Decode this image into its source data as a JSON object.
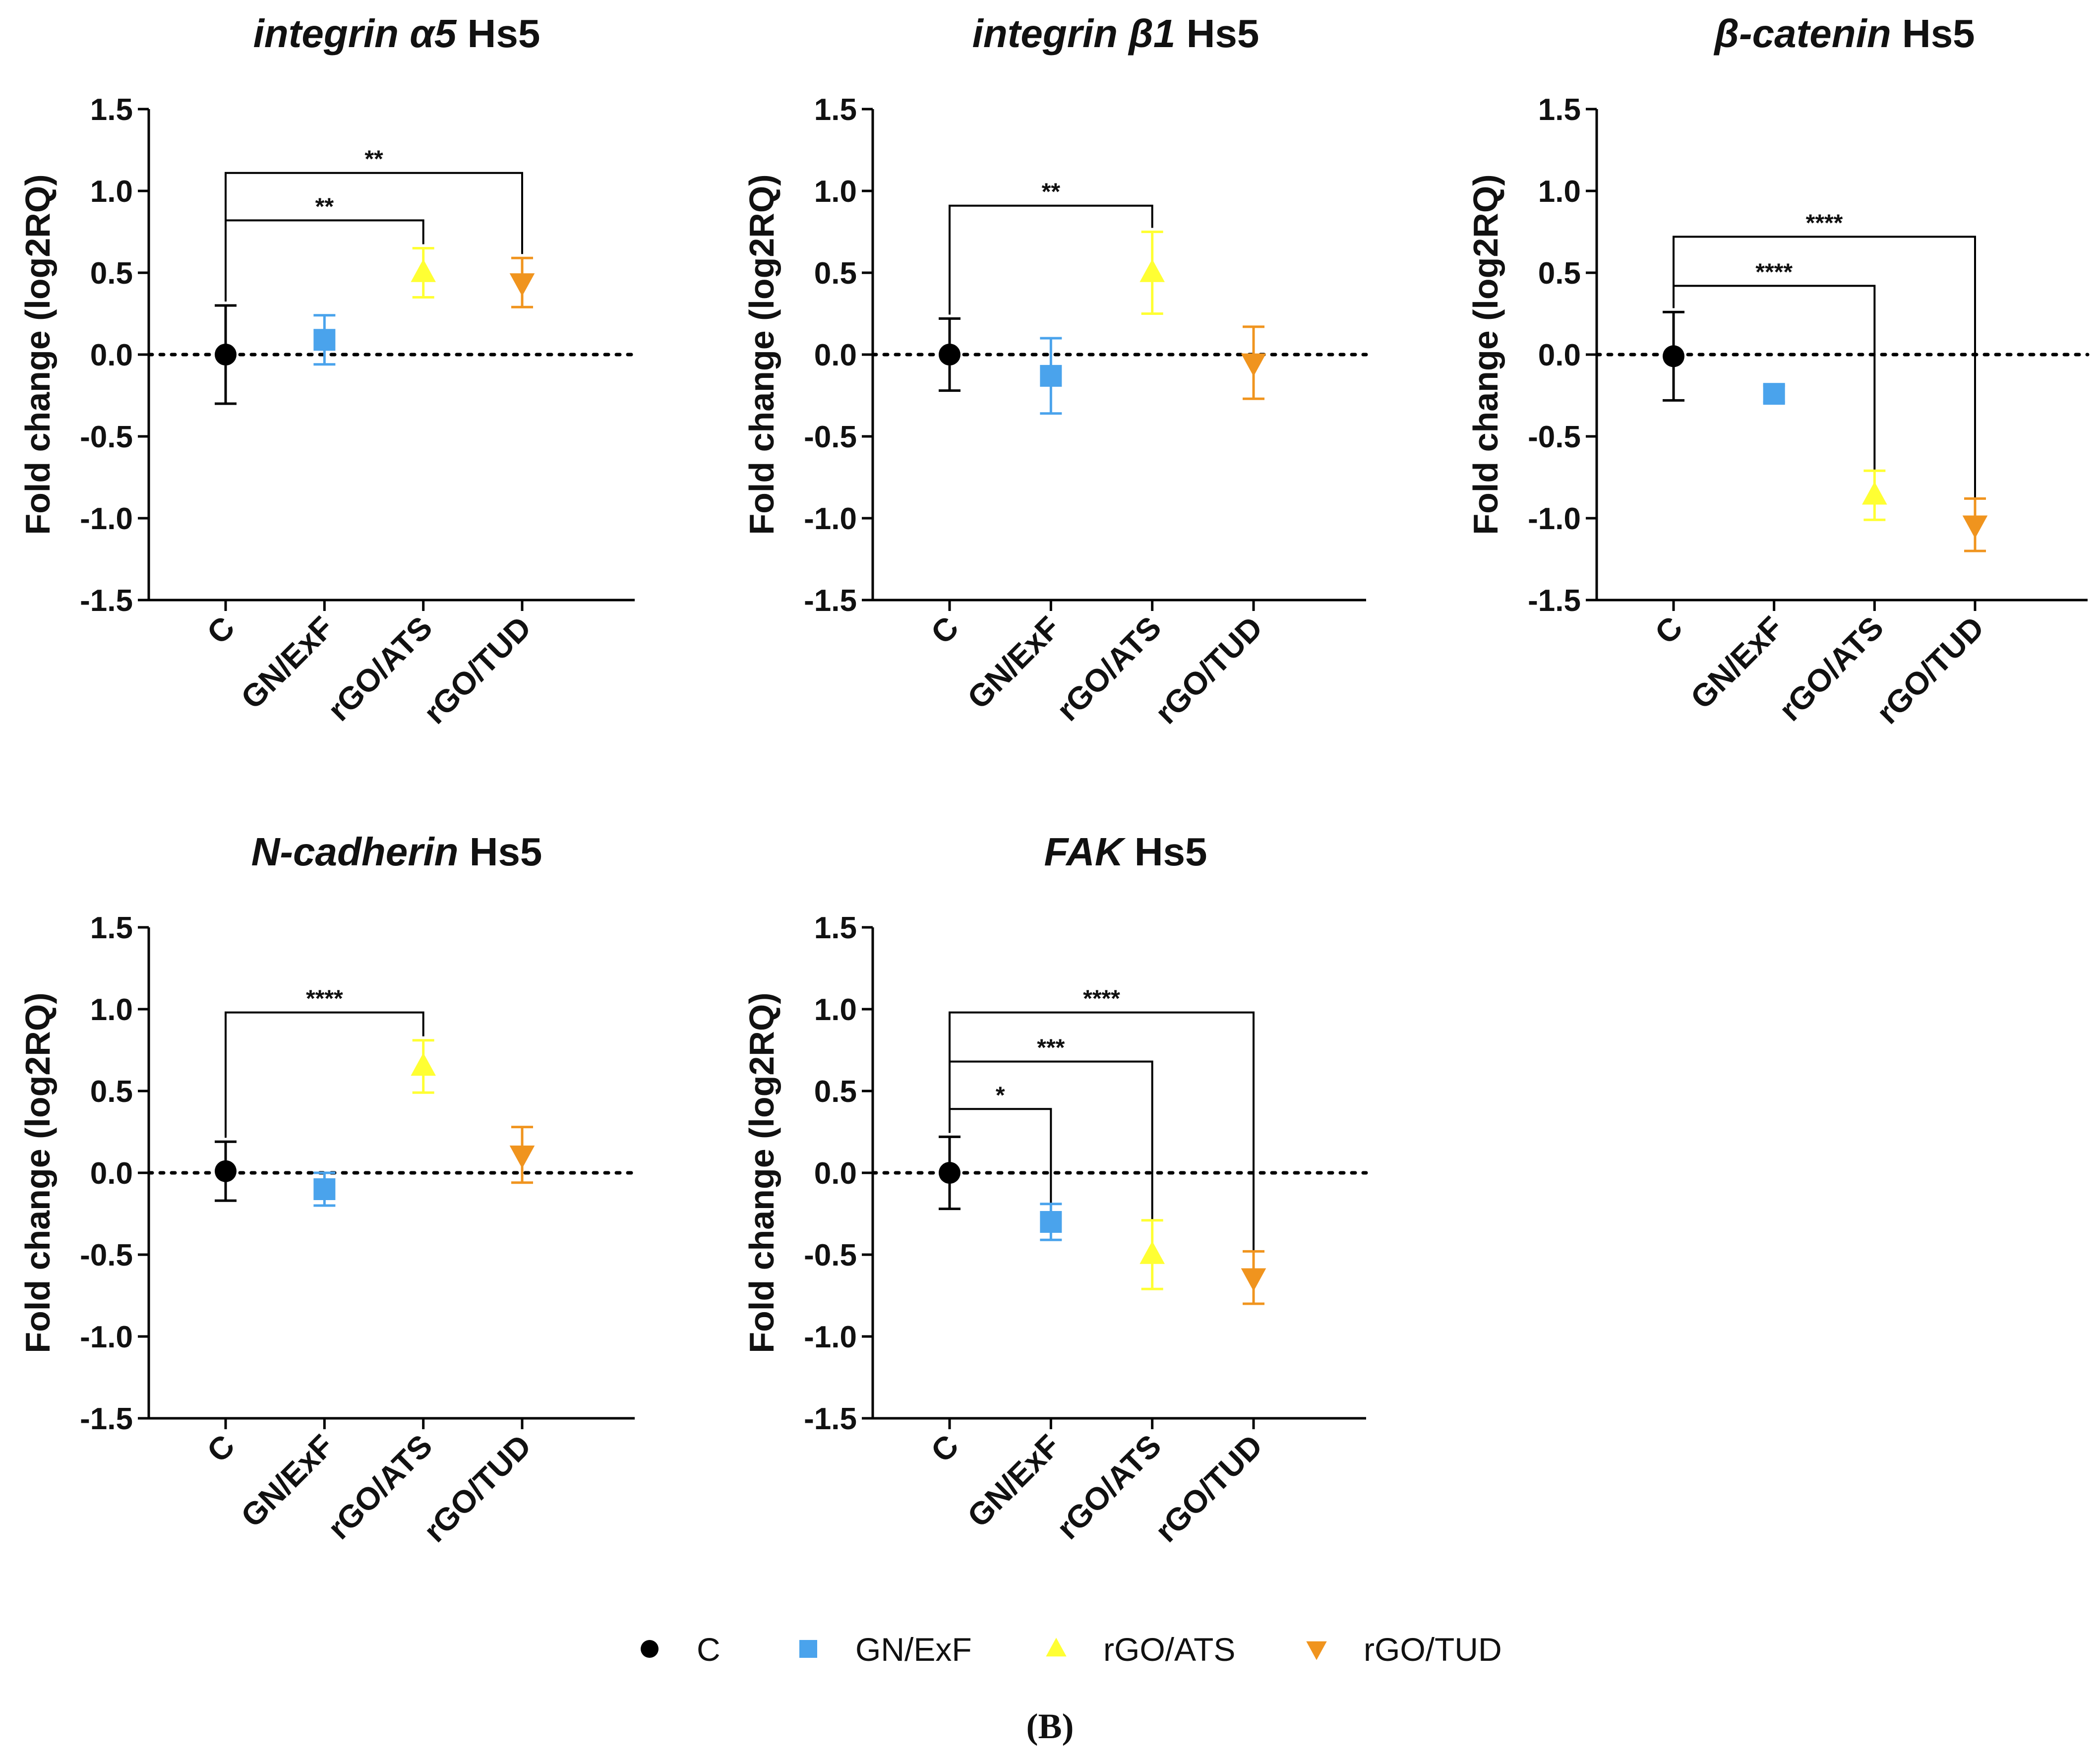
{
  "caption": "(B)",
  "shared": {
    "ylabel": "Fold change (log2RQ)",
    "categories": [
      "C",
      "GN/ExF",
      "rGO/ATS",
      "rGO/TUD"
    ],
    "ylim": [
      -1.5,
      1.5
    ],
    "yticks": [
      "1.5",
      "1.0",
      "0.5",
      "0.0",
      "-0.5",
      "-1.0",
      "-1.5"
    ],
    "reference_line": 0,
    "grid": false
  },
  "legend": {
    "placement": "bottom-center",
    "entries": [
      {
        "label": "C",
        "marker": "circle",
        "color": "#000000"
      },
      {
        "label": "GN/ExF",
        "marker": "square",
        "color": "#4aa3ec"
      },
      {
        "label": "rGO/ATS",
        "marker": "triangle-up",
        "color": "#ffff33"
      },
      {
        "label": "rGO/TUD",
        "marker": "triangle-down",
        "color": "#f0941e"
      }
    ]
  },
  "chart_data": [
    {
      "type": "scatter",
      "title_italic": "integrin α5",
      "title_rest": " Hs5",
      "xlabel": "",
      "ylabel": "Fold change (log2RQ)",
      "categories": [
        "C",
        "GN/ExF",
        "rGO/ATS",
        "rGO/TUD"
      ],
      "ylim": [
        -1.5,
        1.5
      ],
      "values": [
        0.0,
        0.09,
        0.5,
        0.44
      ],
      "errors": [
        0.3,
        0.15,
        0.15,
        0.15
      ],
      "brackets": [
        {
          "from": 0,
          "to": 2,
          "y": 0.82,
          "label": "**"
        },
        {
          "from": 0,
          "to": 3,
          "y": 1.11,
          "label": "**"
        }
      ]
    },
    {
      "type": "scatter",
      "title_italic": "integrin β1",
      "title_rest": " Hs5",
      "xlabel": "",
      "ylabel": "Fold change (log2RQ)",
      "categories": [
        "C",
        "GN/ExF",
        "rGO/ATS",
        "rGO/TUD"
      ],
      "ylim": [
        -1.5,
        1.5
      ],
      "values": [
        0.0,
        -0.13,
        0.5,
        -0.05
      ],
      "errors": [
        0.22,
        0.23,
        0.25,
        0.22
      ],
      "brackets": [
        {
          "from": 0,
          "to": 2,
          "y": 0.91,
          "label": "**"
        }
      ]
    },
    {
      "type": "scatter",
      "title_italic": "β-catenin",
      "title_rest": " Hs5",
      "xlabel": "",
      "ylabel": "Fold change (log2RQ)",
      "categories": [
        "C",
        "GN/ExF",
        "rGO/ATS",
        "rGO/TUD"
      ],
      "ylim": [
        -1.5,
        1.5
      ],
      "values": [
        -0.01,
        -0.24,
        -0.86,
        -1.04
      ],
      "errors": [
        0.27,
        0.05,
        0.15,
        0.16
      ],
      "brackets": [
        {
          "from": 0,
          "to": 2,
          "y": 0.42,
          "label": "****",
          "drop_to": -0.73
        },
        {
          "from": 0,
          "to": 3,
          "y": 0.72,
          "label": "****",
          "drop_to": -0.9
        }
      ]
    },
    {
      "type": "scatter",
      "title_italic": "N-cadherin",
      "title_rest": " Hs5",
      "xlabel": "",
      "ylabel": "Fold change (log2RQ)",
      "categories": [
        "C",
        "GN/ExF",
        "rGO/ATS",
        "rGO/TUD"
      ],
      "ylim": [
        -1.5,
        1.5
      ],
      "values": [
        0.01,
        -0.1,
        0.65,
        0.11
      ],
      "errors": [
        0.18,
        0.1,
        0.16,
        0.17
      ],
      "brackets": [
        {
          "from": 0,
          "to": 2,
          "y": 0.98,
          "label": "****"
        }
      ]
    },
    {
      "type": "scatter",
      "title_italic": "FAK",
      "title_rest": " Hs5",
      "xlabel": "",
      "ylabel": "Fold change (log2RQ)",
      "categories": [
        "C",
        "GN/ExF",
        "rGO/ATS",
        "rGO/TUD"
      ],
      "ylim": [
        -1.5,
        1.5
      ],
      "values": [
        0.0,
        -0.3,
        -0.5,
        -0.64
      ],
      "errors": [
        0.22,
        0.11,
        0.21,
        0.16
      ],
      "brackets": [
        {
          "from": 0,
          "to": 1,
          "y": 0.39,
          "label": "*",
          "drop_to": -0.19
        },
        {
          "from": 0,
          "to": 2,
          "y": 0.68,
          "label": "***",
          "drop_to": -0.29
        },
        {
          "from": 0,
          "to": 3,
          "y": 0.98,
          "label": "****",
          "drop_to": -0.48
        }
      ]
    }
  ]
}
